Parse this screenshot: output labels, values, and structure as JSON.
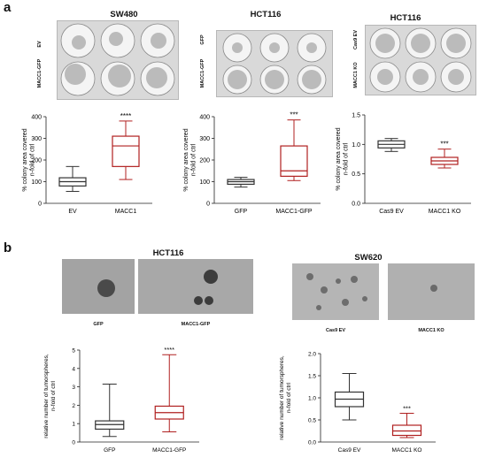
{
  "panel_a": {
    "letter": "a",
    "plates": [
      {
        "title": "SW480",
        "row_labels": [
          "EV",
          "MACC1-GFP"
        ]
      },
      {
        "title": "HCT116",
        "row_labels": [
          "GFP",
          "MACC1-GFP"
        ]
      },
      {
        "title": "HCT116",
        "row_labels": [
          "Cas9 EV",
          "MACC1 KO"
        ]
      }
    ]
  },
  "panel_b": {
    "letter": "b",
    "groups": [
      {
        "title": "HCT116",
        "captions": [
          "GFP",
          "MACC1-GFP"
        ]
      },
      {
        "title": "SW620",
        "captions": [
          "Cas9 EV",
          "MACC1 KO"
        ]
      }
    ]
  },
  "chart_data": [
    {
      "type": "box",
      "ylabel": "% colony area covered\nn-fold of ctrl",
      "ylim": [
        0,
        400
      ],
      "yticks": [
        "0",
        "100",
        "200",
        "300",
        "400"
      ],
      "categories": [
        "EV",
        "MACC1"
      ],
      "boxes": [
        {
          "min": 55,
          "q1": 80,
          "median": 100,
          "q3": 118,
          "max": 170,
          "color": "#333333"
        },
        {
          "min": 110,
          "q1": 170,
          "median": 265,
          "q3": 310,
          "max": 380,
          "color": "#b02020"
        }
      ],
      "significance": "****"
    },
    {
      "type": "box",
      "ylabel": "% colony area covered\nn-fold of ctrl",
      "ylim": [
        0,
        400
      ],
      "yticks": [
        "0",
        "100",
        "200",
        "300",
        "400"
      ],
      "categories": [
        "GFP",
        "MACC1-GFP"
      ],
      "boxes": [
        {
          "min": 75,
          "q1": 88,
          "median": 100,
          "q3": 110,
          "max": 120,
          "color": "#333333"
        },
        {
          "min": 105,
          "q1": 125,
          "median": 150,
          "q3": 265,
          "max": 385,
          "color": "#b02020"
        }
      ],
      "significance": "***"
    },
    {
      "type": "box",
      "ylabel": "% colony area covered\nn-fold of ctrl",
      "ylim": [
        0,
        1.5
      ],
      "yticks": [
        "0.0",
        "0.5",
        "1.0",
        "1.5"
      ],
      "categories": [
        "Cas9 EV",
        "MACC1 KO"
      ],
      "boxes": [
        {
          "min": 0.88,
          "q1": 0.94,
          "median": 1.0,
          "q3": 1.06,
          "max": 1.1,
          "color": "#333333"
        },
        {
          "min": 0.6,
          "q1": 0.66,
          "median": 0.72,
          "q3": 0.78,
          "max": 0.92,
          "color": "#b02020"
        }
      ],
      "significance": "***"
    },
    {
      "type": "box",
      "ylabel": "relative number of tumorspheres,\nn-fold of ctrl",
      "ylim": [
        0,
        5
      ],
      "yticks": [
        "0",
        "1",
        "2",
        "3",
        "4",
        "5"
      ],
      "categories": [
        "GFP",
        "MACC1-GFP"
      ],
      "boxes": [
        {
          "min": 0.3,
          "q1": 0.7,
          "median": 0.95,
          "q3": 1.15,
          "max": 3.15,
          "color": "#333333"
        },
        {
          "min": 0.55,
          "q1": 1.25,
          "median": 1.6,
          "q3": 1.95,
          "max": 4.75,
          "color": "#b02020"
        }
      ],
      "significance": "****"
    },
    {
      "type": "box",
      "ylabel": "relative number of tumorspheres,\nn-fold of ctrl",
      "ylim": [
        0,
        2.0
      ],
      "yticks": [
        "0.0",
        "0.5",
        "1.0",
        "1.5",
        "2.0"
      ],
      "categories": [
        "Cas9 EV",
        "MACC1 KO"
      ],
      "boxes": [
        {
          "min": 0.5,
          "q1": 0.8,
          "median": 0.97,
          "q3": 1.13,
          "max": 1.55,
          "color": "#333333"
        },
        {
          "min": 0.1,
          "q1": 0.15,
          "median": 0.25,
          "q3": 0.38,
          "max": 0.65,
          "color": "#b02020"
        }
      ],
      "significance": "***"
    }
  ]
}
